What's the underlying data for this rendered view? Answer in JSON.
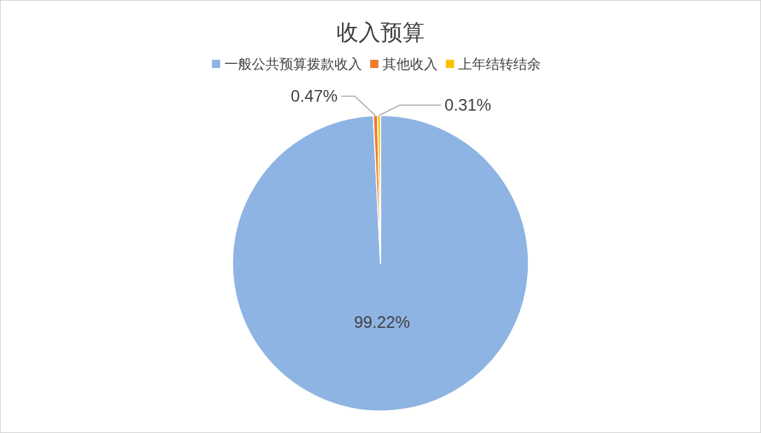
{
  "chart_data": {
    "type": "pie",
    "title": "收入预算",
    "categories": [
      "一般公共预算拨款收入",
      "其他收入",
      "上年结转结余"
    ],
    "values": [
      99.22,
      0.47,
      0.31
    ],
    "colors": [
      "#8eb4e3",
      "#ed7d31",
      "#ffc000"
    ],
    "value_labels": [
      "99.22%",
      "0.47%",
      "0.31%"
    ],
    "legend": "top"
  }
}
